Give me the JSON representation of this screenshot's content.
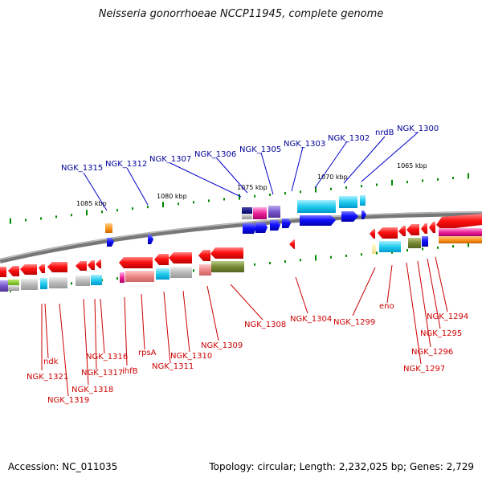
{
  "title": "Neisseria gonorrhoeae NCCP11945, complete genome",
  "footer": {
    "accession": "Accession: NC_011035",
    "summary": "Topology: circular; Length: 2,232,025 bp; Genes: 2,729"
  },
  "scale_labels": [
    "1085 kbp",
    "1080 kbp",
    "1075 kbp",
    "1070 kbp",
    "1065 kbp"
  ],
  "labels_top": [
    "NGK_1315",
    "NGK_1312",
    "NGK_1307",
    "NGK_1306",
    "NGK_1305",
    "NGK_1303",
    "NGK_1302",
    "nrdB",
    "NGK_1300"
  ],
  "labels_bottom": [
    "ndk",
    "NGK_1321",
    "NGK_1319",
    "NGK_1318",
    "NGK_1317",
    "NGK_1316",
    "ihfB",
    "rpsA",
    "NGK_1311",
    "NGK_1310",
    "NGK_1309",
    "NGK_1308",
    "NGK_1304",
    "NGK_1299",
    "eno",
    "NGK_1297",
    "NGK_1296",
    "NGK_1295",
    "NGK_1294"
  ],
  "colors": {
    "forward_strand": "#0000ee",
    "reverse_strand": "#ee0000",
    "label_forward": "#000099",
    "label_reverse": "#cc0000",
    "tick": "#008800",
    "backbone": "#888888"
  }
}
